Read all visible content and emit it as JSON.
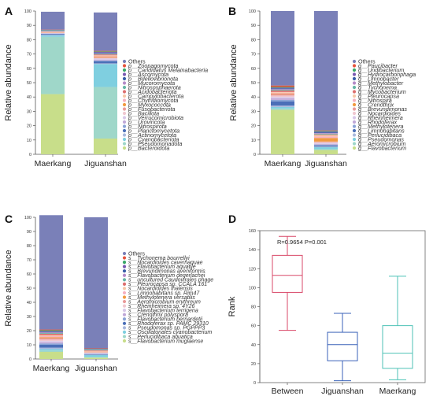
{
  "chart_data": [
    {
      "panel": "A",
      "type": "bar",
      "stacked": true,
      "ylabel": "Relative abundance",
      "ylim": [
        0,
        100
      ],
      "yticks": [
        0,
        10,
        20,
        30,
        40,
        50,
        60,
        70,
        80,
        90,
        100
      ],
      "categories": [
        "Maerkang",
        "Jiguanshan"
      ],
      "legend_position": "right",
      "series": [
        {
          "name": "p__Bacteroidota",
          "color": "#c8de8a",
          "values": [
            42,
            11
          ]
        },
        {
          "name": "p__Pseudomonadota",
          "color": "#9fd7c9",
          "values": [
            40,
            36
          ]
        },
        {
          "name": "p__Cyanobacteriota",
          "color": "#7fcfe0",
          "values": [
            1,
            16
          ]
        },
        {
          "name": "p__Actinomycetota",
          "color": "#a8b8dc",
          "values": [
            0.5,
            0.5
          ]
        },
        {
          "name": "p__Planctomycetota",
          "color": "#4b6fb8",
          "values": [
            0.5,
            1.5
          ]
        },
        {
          "name": "p__Nitrospirota",
          "color": "#8ba4d6",
          "values": [
            0.2,
            0.5
          ]
        },
        {
          "name": "p__Uroviricota",
          "color": "#c0a8d8",
          "values": [
            0.2,
            0.5
          ]
        },
        {
          "name": "p__Verrucomicrobiota",
          "color": "#d8c8e8",
          "values": [
            0.2,
            0.8
          ]
        },
        {
          "name": "p__Bacillota",
          "color": "#f0c8d0",
          "values": [
            0.2,
            0.5
          ]
        },
        {
          "name": "p__Fusobacteriota",
          "color": "#e99a9a",
          "values": [
            0.2,
            0.4
          ]
        },
        {
          "name": "p__Myxococcota",
          "color": "#f19a3f",
          "values": [
            0.2,
            0.6
          ]
        },
        {
          "name": "p__Chytridiomycota",
          "color": "#f6b0c0",
          "values": [
            0.2,
            0.4
          ]
        },
        {
          "name": "p__Campylobacterota",
          "color": "#f7c9a9",
          "values": [
            0.2,
            0.4
          ]
        },
        {
          "name": "p__Acidobacteriota",
          "color": "#dc6f6f",
          "values": [
            0.2,
            0.6
          ]
        },
        {
          "name": "p__Nitrososphaerota",
          "color": "#66b6a6",
          "values": [
            0.2,
            0.4
          ]
        },
        {
          "name": "p__Mucoromycota",
          "color": "#b48ac8",
          "values": [
            0.2,
            0.4
          ]
        },
        {
          "name": "p__Bdellovibrionota",
          "color": "#3a5ea8",
          "values": [
            0.2,
            0.4
          ]
        },
        {
          "name": "p__Ascomycota",
          "color": "#7a5ab0",
          "values": [
            0.2,
            0.5
          ]
        },
        {
          "name": "p__Candidatus Melainabacteria",
          "color": "#3aa868",
          "values": [
            0.2,
            0.4
          ]
        },
        {
          "name": "p__Zoopagomycota",
          "color": "#e6533c",
          "values": [
            0.2,
            0.4
          ]
        },
        {
          "name": "Others",
          "color": "#7a80b8",
          "values": [
            12.5,
            26.8
          ]
        }
      ]
    },
    {
      "panel": "B",
      "type": "bar",
      "stacked": true,
      "ylabel": "Relative abundance",
      "ylim": [
        0,
        100
      ],
      "yticks": [
        0,
        10,
        20,
        30,
        40,
        50,
        60,
        70,
        80,
        90,
        100
      ],
      "categories": [
        "Maerkang",
        "Jiguanshan"
      ],
      "legend_position": "right",
      "series": [
        {
          "name": "g__Flavobacterium",
          "color": "#c8de8a",
          "values": [
            31,
            3
          ]
        },
        {
          "name": "g__Aeromicrobium",
          "color": "#9fd7c9",
          "values": [
            1,
            0.5
          ]
        },
        {
          "name": "g__Pseudomonas",
          "color": "#7fcfe0",
          "values": [
            1,
            1.5
          ]
        },
        {
          "name": "g__Perlucidibaca",
          "color": "#a8b8dc",
          "values": [
            1,
            0.5
          ]
        },
        {
          "name": "g__Limnohabitans",
          "color": "#4b6fb8",
          "values": [
            3,
            0.7
          ]
        },
        {
          "name": "g__Methylotenera",
          "color": "#8ba4d6",
          "values": [
            1,
            0.5
          ]
        },
        {
          "name": "g__Rhodoferax",
          "color": "#c0a8d8",
          "values": [
            1,
            0.5
          ]
        },
        {
          "name": "g__Rheinheimera",
          "color": "#d8c8e8",
          "values": [
            1,
            0.7
          ]
        },
        {
          "name": "g__Nocardioides",
          "color": "#f0c8d0",
          "values": [
            1,
            0.5
          ]
        },
        {
          "name": "g__Brevundimonas",
          "color": "#e99a9a",
          "values": [
            1,
            0.5
          ]
        },
        {
          "name": "g__Crenothrix",
          "color": "#f19a3f",
          "values": [
            0.5,
            2.5
          ]
        },
        {
          "name": "g__Nitrospira",
          "color": "#f6b0c0",
          "values": [
            0.5,
            1
          ]
        },
        {
          "name": "g__Pleurocapsa",
          "color": "#f7c9a9",
          "values": [
            0.5,
            1
          ]
        },
        {
          "name": "g__Mycobacterium",
          "color": "#dc6f6f",
          "values": [
            1,
            0.5
          ]
        },
        {
          "name": "g__Tychonema",
          "color": "#66b6a6",
          "values": [
            0.5,
            0.5
          ]
        },
        {
          "name": "g__Methylobacter",
          "color": "#b48ac8",
          "values": [
            0.5,
            0.5
          ]
        },
        {
          "name": "g__Limnobacter",
          "color": "#3a5ea8",
          "values": [
            0.5,
            0.5
          ]
        },
        {
          "name": "g__Hydrocarbonphaga",
          "color": "#7a5ab0",
          "values": [
            0.5,
            0.5
          ]
        },
        {
          "name": "g__Undibacterium",
          "color": "#3aa868",
          "values": [
            0.5,
            0.5
          ]
        },
        {
          "name": "g__Paucibacter",
          "color": "#e6533c",
          "values": [
            1,
            0.3
          ]
        },
        {
          "name": "Others",
          "color": "#7a80b8",
          "values": [
            52,
            83.3
          ]
        }
      ]
    },
    {
      "panel": "C",
      "type": "bar",
      "stacked": true,
      "ylabel": "Relative abundance",
      "ylim": [
        0,
        100
      ],
      "yticks": [
        0,
        10,
        20,
        30,
        40,
        50,
        60,
        70,
        80,
        90,
        100
      ],
      "categories": [
        "Maerkang",
        "Jiguanshan"
      ],
      "legend_position": "right",
      "series": [
        {
          "name": "s__Flavobacterium muglaense",
          "color": "#c8de8a",
          "values": [
            5,
            1
          ]
        },
        {
          "name": "s__Perlucidibaca aquatica",
          "color": "#9fd7c9",
          "values": [
            1,
            0.3
          ]
        },
        {
          "name": "s__Oscillatoriales cyanobacterium",
          "color": "#7fcfe0",
          "values": [
            1,
            1.5
          ]
        },
        {
          "name": "s__Pseudomonas sp. PGPPP3",
          "color": "#a8b8dc",
          "values": [
            1,
            0.3
          ]
        },
        {
          "name": "s__Rhodoferax sp. PAMC 29310",
          "color": "#4b6fb8",
          "values": [
            2,
            0.3
          ]
        },
        {
          "name": "s__Flavobacterium bernardetii",
          "color": "#8ba4d6",
          "values": [
            1,
            0.3
          ]
        },
        {
          "name": "s__Crenothrix polyspora",
          "color": "#c0a8d8",
          "values": [
            0.7,
            0.3
          ]
        },
        {
          "name": "s__Flavobacterium terrigena",
          "color": "#d8c8e8",
          "values": [
            1,
            0.3
          ]
        },
        {
          "name": "s__Rheinheimera sp. 4Y26",
          "color": "#f0c8d0",
          "values": [
            1,
            0.3
          ]
        },
        {
          "name": "s__Aeromicrobium erythreum",
          "color": "#e99a9a",
          "values": [
            1,
            0.3
          ]
        },
        {
          "name": "s__Methylotenera versatilis",
          "color": "#f19a3f",
          "values": [
            0.7,
            0.3
          ]
        },
        {
          "name": "s__Limnohabitans sp. Rim47",
          "color": "#f6b0c0",
          "values": [
            0.7,
            0.3
          ]
        },
        {
          "name": "s__Nocardioides thalensis",
          "color": "#f7c9a9",
          "values": [
            0.7,
            0.3
          ]
        },
        {
          "name": "s__Pleurocapsa sp. CCALA 161",
          "color": "#dc6f6f",
          "values": [
            1,
            0.3
          ]
        },
        {
          "name": "s__uncultured Caudovirales phage",
          "color": "#66b6a6",
          "values": [
            0.5,
            0.3
          ]
        },
        {
          "name": "s__Flavobacterium degerlachei",
          "color": "#b48ac8",
          "values": [
            0.5,
            0.2
          ]
        },
        {
          "name": "s__Brevundimonas aveniformis",
          "color": "#3a5ea8",
          "values": [
            0.5,
            0.2
          ]
        },
        {
          "name": "s__Flavobacterium aquatile",
          "color": "#7a5ab0",
          "values": [
            0.5,
            0.2
          ]
        },
        {
          "name": "s__Nocardioides cavernaquae",
          "color": "#3aa868",
          "values": [
            0.5,
            0.2
          ]
        },
        {
          "name": "s__Tychonema bourrellyi",
          "color": "#e6533c",
          "values": [
            0.5,
            0.3
          ]
        },
        {
          "name": "Others",
          "color": "#7a80b8",
          "values": [
            80.7,
            92.5
          ]
        }
      ]
    },
    {
      "panel": "D",
      "type": "box",
      "ylabel": "Rank",
      "ylim": [
        0,
        160
      ],
      "yticks": [
        0,
        20,
        40,
        60,
        80,
        100,
        120,
        140,
        160
      ],
      "categories": [
        "Between",
        "Jiguanshan",
        "Maerkang"
      ],
      "annotation": "R=0.9654  P=0.001",
      "boxes": [
        {
          "name": "Between",
          "color": "#d94868",
          "min": 55,
          "q1": 95,
          "median": 113,
          "q3": 134,
          "max": 154
        },
        {
          "name": "Jiguanshan",
          "color": "#3a62b8",
          "min": 2,
          "q1": 23,
          "median": 40,
          "q3": 53,
          "max": 73
        },
        {
          "name": "Maerkang",
          "color": "#4ec2b6",
          "min": 3,
          "q1": 15,
          "median": 31,
          "q3": 60,
          "max": 112
        }
      ]
    }
  ]
}
